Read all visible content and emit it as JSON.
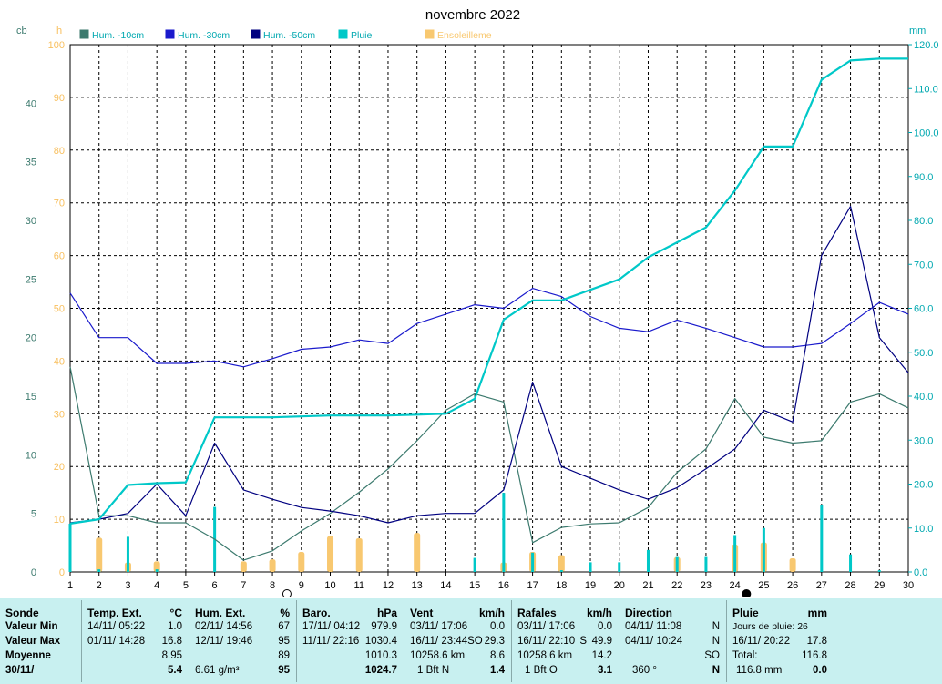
{
  "title": "novembre 2022",
  "colors": {
    "hum10": "#3c7a6e",
    "hum30": "#1a1acc",
    "hum50": "#000080",
    "pluie": "#00c8c8",
    "sun": "#f8c870",
    "cb_axis": "#3c7a6e",
    "h_axis": "#f8c060",
    "mm_axis": "#00a8b0"
  },
  "chart_data": {
    "type": "line",
    "title": "novembre 2022",
    "x": [
      1,
      2,
      3,
      4,
      5,
      6,
      7,
      8,
      9,
      10,
      11,
      12,
      13,
      14,
      15,
      16,
      17,
      18,
      19,
      20,
      21,
      22,
      23,
      24,
      25,
      26,
      27,
      28,
      29,
      30
    ],
    "axes": {
      "x_range": [
        1,
        30
      ],
      "left_cb": {
        "label": "cb",
        "range": [
          0,
          45
        ],
        "ticks": [
          0,
          5,
          10,
          15,
          20,
          25,
          30,
          35,
          40
        ]
      },
      "left_h": {
        "label": "h",
        "range": [
          0,
          100
        ],
        "ticks": [
          0,
          10,
          20,
          30,
          40,
          50,
          60,
          70,
          80,
          90,
          100
        ]
      },
      "right_mm": {
        "label": "mm",
        "range": [
          0,
          120
        ],
        "ticks": [
          "0.0",
          "10.0",
          "20.0",
          "30.0",
          "40.0",
          "50.0",
          "60.0",
          "70.0",
          "80.0",
          "90.0",
          "100.0",
          "110.0",
          "120.0"
        ]
      }
    },
    "grid": true,
    "legend_position": "top",
    "series": [
      {
        "name": "Hum. -10cm",
        "axis": "cb",
        "values": [
          17.5,
          4.8,
          4.8,
          4.2,
          4.2,
          2.8,
          1.0,
          1.8,
          3.5,
          5.0,
          6.8,
          8.8,
          11.2,
          13.8,
          15.2,
          14.5,
          2.5,
          3.8,
          4.1,
          4.2,
          5.5,
          8.5,
          10.5,
          14.8,
          11.5,
          11.0,
          11.2,
          14.5,
          15.2,
          14.0
        ]
      },
      {
        "name": "Hum. -30cm",
        "axis": "cb",
        "values": [
          23.8,
          20.0,
          20.0,
          17.8,
          17.8,
          18.0,
          17.5,
          18.2,
          19.0,
          19.2,
          19.8,
          19.5,
          21.2,
          22.0,
          22.8,
          22.5,
          24.2,
          23.5,
          21.8,
          20.8,
          20.5,
          21.5,
          20.8,
          20.0,
          19.2,
          19.2,
          19.5,
          21.2,
          23.0,
          22.0
        ]
      },
      {
        "name": "Hum. -50cm",
        "axis": "cb",
        "values": [
          4.2,
          4.5,
          5.0,
          7.5,
          4.8,
          11.0,
          7.0,
          6.2,
          5.5,
          5.2,
          4.8,
          4.2,
          4.8,
          5.0,
          5.0,
          7.0,
          16.2,
          9.0,
          8.0,
          7.0,
          6.2,
          7.2,
          8.8,
          10.5,
          13.8,
          12.8,
          27.0,
          31.2,
          20.0,
          17.0
        ]
      },
      {
        "name": "Pluie",
        "axis": "mm",
        "values": [
          11.0,
          12.0,
          19.8,
          20.2,
          20.4,
          35.2,
          35.2,
          35.2,
          35.4,
          35.6,
          35.6,
          35.6,
          35.8,
          36.0,
          39.4,
          57.4,
          61.8,
          61.8,
          64.2,
          66.6,
          71.6,
          75.0,
          78.4,
          86.8,
          96.8,
          96.8,
          112.0,
          116.4,
          116.8,
          116.8
        ]
      }
    ],
    "rain_bars": {
      "name": "Pluie (jour)",
      "axis": "mm",
      "days": [
        1,
        2,
        3,
        4,
        6,
        15,
        16,
        17,
        18,
        19,
        20,
        21,
        22,
        23,
        24,
        25,
        27,
        28,
        29
      ],
      "values": [
        11.0,
        0.6,
        8.0,
        0.6,
        14.8,
        3.2,
        18.0,
        4.4,
        0.4,
        2.2,
        2.2,
        5.0,
        3.4,
        3.4,
        8.4,
        10.0,
        15.2,
        4.0,
        0.4
      ]
    },
    "sun_bars": {
      "name": "Ensoleilleme",
      "axis": "h",
      "days": [
        2,
        3,
        4,
        7,
        8,
        9,
        10,
        11,
        13,
        16,
        17,
        18,
        22,
        24,
        25,
        26
      ],
      "values": [
        6.5,
        1.8,
        2.0,
        2.0,
        2.4,
        3.8,
        6.8,
        6.4,
        7.4,
        1.8,
        3.8,
        3.2,
        2.8,
        5.2,
        5.6,
        2.6
      ]
    },
    "markers": [
      {
        "x": 8.5,
        "symbol": "○"
      },
      {
        "x": 24.4,
        "symbol": "●"
      }
    ]
  },
  "panel": {
    "sonde": {
      "header": "Sonde",
      "rows": [
        "Valeur Min",
        "Valeur Max",
        "Moyenne",
        "30/11/"
      ]
    },
    "temp": {
      "header": "Temp. Ext.",
      "unit": "°C",
      "min_t": "14/11/  05:22",
      "min_v": "1.0",
      "max_t": "01/11/  14:28",
      "max_v": "16.8",
      "avg": "8.95",
      "cur": "5.4"
    },
    "hum": {
      "header": "Hum. Ext.",
      "unit": "%",
      "min_t": "02/11/  14:56",
      "min_v": "67",
      "max_t": "12/11/  19:46",
      "max_v": "95",
      "avg": "89",
      "cur_extra": "6.61 g/m³",
      "cur": "95"
    },
    "baro": {
      "header": "Baro.",
      "unit": "hPa",
      "min_t": "17/11/  04:12",
      "min_v": "979.9",
      "max_t": "11/11/  22:16",
      "max_v": "1030.4",
      "avg": "1010.3",
      "cur": "1024.7"
    },
    "vent": {
      "header": "Vent",
      "unit": "km/h",
      "min_t": "03/11/  17:06",
      "min_v": "0.0",
      "max_t": "16/11/  23:44SO",
      "max_v": "29.3",
      "dist": "10258.6 km",
      "avg": "8.6",
      "bft": "1 Bft N",
      "cur": "1.4"
    },
    "rafales": {
      "header": "Rafales",
      "unit": "km/h",
      "min_t": "03/11/  17:06",
      "min_v": "0.0",
      "max_t": "16/11/  22:10",
      "max_d": "S",
      "max_v": "49.9",
      "dist": "10258.6 km",
      "avg": "14.2",
      "bft": "1 Bft O",
      "cur": "3.1"
    },
    "direction": {
      "header": "Direction",
      "min_t": "04/11/  11:08",
      "min_v": "N",
      "max_t": "04/11/  10:24",
      "max_v": "N",
      "avg": "SO",
      "deg": "360 °",
      "cur": "N"
    },
    "pluie": {
      "header": "Pluie",
      "unit": "mm",
      "jours": "Jours de pluie: 26",
      "max_t": "16/11/  20:22",
      "max_v": "17.8",
      "total_l": "Total:",
      "total_v": "116.8",
      "cur_extra": "116.8 mm",
      "cur": "0.0"
    }
  }
}
